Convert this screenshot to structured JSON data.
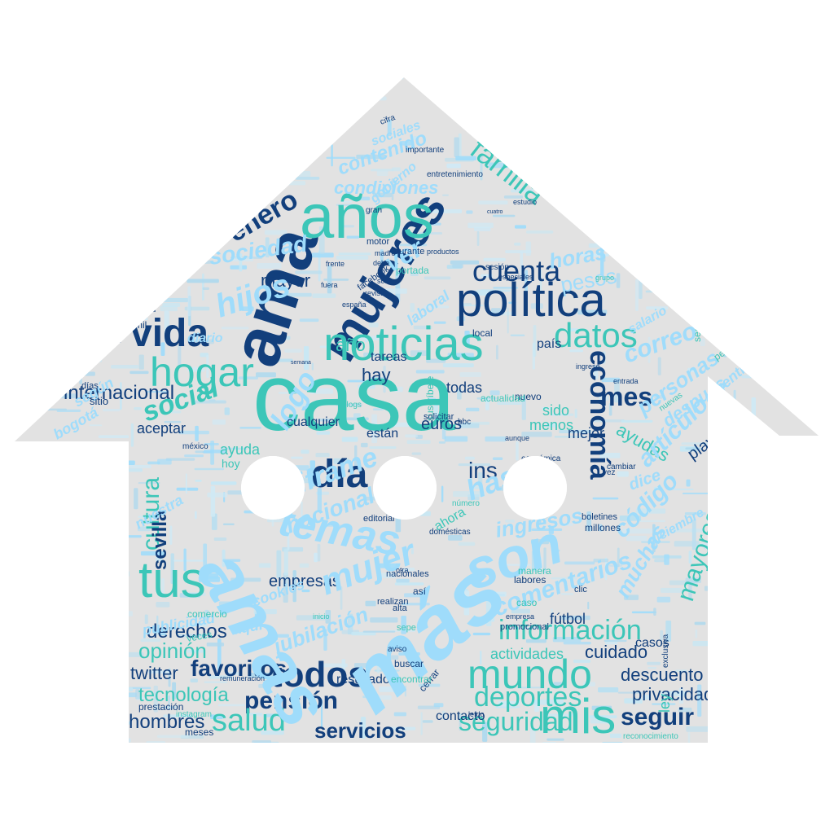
{
  "palette": {
    "background": "#ffffff",
    "house": "#e2e2e2",
    "navy": "#123f7c",
    "teal": "#3cc6b8",
    "sky": "#9fdcfb",
    "pale": "#c6e7f4"
  },
  "windows": [
    "window-left",
    "window-center",
    "window-right"
  ],
  "words": [
    {
      "text": "casa",
      "color": "teal"
    },
    {
      "text": "ama",
      "color": "navy"
    },
    {
      "text": "mujeres",
      "color": "navy"
    },
    {
      "text": "años",
      "color": "teal"
    },
    {
      "text": "política",
      "color": "navy"
    },
    {
      "text": "noticias",
      "color": "teal"
    },
    {
      "text": "hogar",
      "color": "teal"
    },
    {
      "text": "vida",
      "color": "navy"
    },
    {
      "text": "datos",
      "color": "teal"
    },
    {
      "text": "día",
      "color": "navy"
    },
    {
      "text": "economía",
      "color": "navy"
    },
    {
      "text": "mes",
      "color": "navy"
    },
    {
      "text": "cuenta",
      "color": "navy"
    },
    {
      "text": "enero",
      "color": "navy"
    },
    {
      "text": "mayor",
      "color": "navy"
    },
    {
      "text": "familia",
      "color": "teal"
    },
    {
      "text": "internacional",
      "color": "navy"
    },
    {
      "text": "social",
      "color": "teal"
    },
    {
      "text": "hijos",
      "color": "sky"
    },
    {
      "text": "tus",
      "color": "teal"
    },
    {
      "text": "cultura",
      "color": "teal"
    },
    {
      "text": "sevilla",
      "color": "navy"
    },
    {
      "text": "todos",
      "color": "navy"
    },
    {
      "text": "mundo",
      "color": "teal"
    },
    {
      "text": "mis",
      "color": "teal"
    },
    {
      "text": "información",
      "color": "teal"
    },
    {
      "text": "deportes",
      "color": "teal"
    },
    {
      "text": "pensión",
      "color": "navy"
    },
    {
      "text": "derechos",
      "color": "navy"
    },
    {
      "text": "favoritos",
      "color": "navy"
    },
    {
      "text": "twitter",
      "color": "navy"
    },
    {
      "text": "salud",
      "color": "teal"
    },
    {
      "text": "servicios",
      "color": "navy"
    },
    {
      "text": "hombres",
      "color": "navy"
    },
    {
      "text": "seguir",
      "color": "navy"
    },
    {
      "text": "privacidad",
      "color": "navy"
    },
    {
      "text": "descuento",
      "color": "navy"
    },
    {
      "text": "cuidado",
      "color": "navy"
    },
    {
      "text": "seguridad",
      "color": "teal"
    },
    {
      "text": "tecnología",
      "color": "teal"
    },
    {
      "text": "opinión",
      "color": "teal"
    },
    {
      "text": "mayores",
      "color": "teal"
    },
    {
      "text": "empresas",
      "color": "navy"
    },
    {
      "text": "ayuda",
      "color": "teal"
    },
    {
      "text": "hay",
      "color": "navy"
    },
    {
      "text": "todas",
      "color": "navy"
    },
    {
      "text": "euros",
      "color": "navy"
    },
    {
      "text": "ins",
      "color": "navy"
    },
    {
      "text": "año",
      "color": "teal"
    },
    {
      "text": "correo",
      "color": "sky"
    },
    {
      "text": "logo",
      "color": "sky"
    },
    {
      "text": "ayudas",
      "color": "teal"
    },
    {
      "text": "otras",
      "color": "navy"
    },
    {
      "text": "play",
      "color": "navy"
    },
    {
      "text": "aceptar",
      "color": "navy"
    },
    {
      "text": "contacto",
      "color": "navy"
    },
    {
      "text": "resultados",
      "color": "navy"
    },
    {
      "text": "actividades",
      "color": "teal"
    },
    {
      "text": "fútbol",
      "color": "navy"
    },
    {
      "text": "sido",
      "color": "teal"
    },
    {
      "text": "menos",
      "color": "teal"
    },
    {
      "text": "mejor",
      "color": "navy"
    },
    {
      "text": "están",
      "color": "navy"
    },
    {
      "text": "cualquier",
      "color": "navy"
    },
    {
      "text": "tareas",
      "color": "navy"
    },
    {
      "text": "país",
      "color": "navy"
    },
    {
      "text": "sociedad",
      "color": "sky"
    },
    {
      "text": "horas",
      "color": "sky"
    },
    {
      "text": "pesos",
      "color": "sky"
    },
    {
      "text": "ver",
      "color": "sky"
    },
    {
      "text": "amas",
      "color": "sky"
    },
    {
      "text": "más",
      "color": "sky"
    },
    {
      "text": "son",
      "color": "sky"
    },
    {
      "text": "temas",
      "color": "sky"
    },
    {
      "text": "mujer",
      "color": "sky"
    },
    {
      "text": "hasta",
      "color": "sky"
    },
    {
      "text": "iframe",
      "color": "sky"
    },
    {
      "text": "nacional",
      "color": "sky"
    },
    {
      "text": "ingresos",
      "color": "sky"
    },
    {
      "text": "comentarios",
      "color": "sky"
    },
    {
      "text": "jubilación",
      "color": "sky"
    },
    {
      "text": "código",
      "color": "sky"
    },
    {
      "text": "muchas",
      "color": "sky"
    },
    {
      "text": "personas",
      "color": "sky"
    },
    {
      "text": "después",
      "color": "sky"
    },
    {
      "text": "artículo",
      "color": "sky"
    },
    {
      "text": "contenido",
      "color": "sky"
    },
    {
      "text": "condiciones",
      "color": "sky"
    },
    {
      "text": "sociales",
      "color": "sky"
    },
    {
      "text": "pensiones",
      "color": "sky"
    },
    {
      "text": "salario",
      "color": "sky"
    },
    {
      "text": "según",
      "color": "sky"
    },
    {
      "text": "diario",
      "color": "sky"
    },
    {
      "text": "bogotá",
      "color": "sky"
    },
    {
      "text": "publicidad",
      "color": "sky"
    },
    {
      "text": "cookies",
      "color": "sky"
    },
    {
      "text": "nuestra",
      "color": "sky"
    },
    {
      "text": "gobierno",
      "color": "sky"
    },
    {
      "text": "argentina",
      "color": "sky"
    },
    {
      "text": "diciembre",
      "color": "sky"
    },
    {
      "text": "dice",
      "color": "sky"
    },
    {
      "text": "email",
      "color": "pale"
    },
    {
      "text": "aquí",
      "color": "sky"
    },
    {
      "text": "ahora",
      "color": "teal"
    },
    {
      "text": "ley",
      "color": "teal"
    },
    {
      "text": "casos",
      "color": "navy"
    },
    {
      "text": "nuevo",
      "color": "navy"
    },
    {
      "text": "importante",
      "color": "navy"
    },
    {
      "text": "entretenimiento",
      "color": "navy"
    },
    {
      "text": "estudio",
      "color": "navy"
    },
    {
      "text": "facebook",
      "color": "navy"
    },
    {
      "text": "portada",
      "color": "teal"
    },
    {
      "text": "sesión",
      "color": "navy"
    },
    {
      "text": "grupo",
      "color": "teal"
    },
    {
      "text": "sector",
      "color": "teal"
    },
    {
      "text": "persona",
      "color": "teal"
    },
    {
      "text": "digital",
      "color": "navy"
    },
    {
      "text": "sitio",
      "color": "navy"
    },
    {
      "text": "días",
      "color": "navy"
    },
    {
      "text": "feed",
      "color": "navy"
    },
    {
      "text": "mil",
      "color": "navy"
    },
    {
      "text": "local",
      "color": "navy"
    },
    {
      "text": "entrada",
      "color": "navy"
    },
    {
      "text": "ingreso",
      "color": "navy"
    },
    {
      "text": "actualidad",
      "color": "teal"
    },
    {
      "text": "suscríbete",
      "color": "teal"
    },
    {
      "text": "blogs",
      "color": "teal"
    },
    {
      "text": "solicitar",
      "color": "navy"
    },
    {
      "text": "aunque",
      "color": "navy"
    },
    {
      "text": "económica",
      "color": "navy"
    },
    {
      "text": "número",
      "color": "teal"
    },
    {
      "text": "editorial",
      "color": "navy"
    },
    {
      "text": "domésticas",
      "color": "navy"
    },
    {
      "text": "millones",
      "color": "navy"
    },
    {
      "text": "boletines",
      "color": "navy"
    },
    {
      "text": "labores",
      "color": "navy"
    },
    {
      "text": "manera",
      "color": "teal"
    },
    {
      "text": "clic",
      "color": "navy"
    },
    {
      "text": "caso",
      "color": "teal"
    },
    {
      "text": "empresa",
      "color": "navy"
    },
    {
      "text": "promocional",
      "color": "navy"
    },
    {
      "text": "realizan",
      "color": "navy"
    },
    {
      "text": "nacionales",
      "color": "navy"
    },
    {
      "text": "así",
      "color": "navy"
    },
    {
      "text": "inicio",
      "color": "teal"
    },
    {
      "text": "comercio",
      "color": "teal"
    },
    {
      "text": "remuneración",
      "color": "navy"
    },
    {
      "text": "prestación",
      "color": "navy"
    },
    {
      "text": "instagram",
      "color": "teal"
    },
    {
      "text": "meses",
      "color": "navy"
    },
    {
      "text": "cerrar",
      "color": "navy"
    },
    {
      "text": "leído",
      "color": "navy"
    },
    {
      "text": "reconocimiento",
      "color": "teal"
    },
    {
      "text": "exclusiva",
      "color": "navy"
    },
    {
      "text": "bbc",
      "color": "navy"
    },
    {
      "text": "hoy",
      "color": "teal"
    },
    {
      "text": "méxico",
      "color": "navy"
    },
    {
      "text": "aviso",
      "color": "navy"
    },
    {
      "text": "buscar",
      "color": "navy"
    },
    {
      "text": "encontrar",
      "color": "teal"
    },
    {
      "text": "cifra",
      "color": "navy"
    },
    {
      "text": "vez",
      "color": "navy"
    },
    {
      "text": "pagar",
      "color": "teal"
    },
    {
      "text": "motor",
      "color": "navy"
    },
    {
      "text": "durante",
      "color": "navy"
    },
    {
      "text": "productos",
      "color": "navy"
    },
    {
      "text": "gran",
      "color": "navy"
    },
    {
      "text": "madre",
      "color": "navy"
    },
    {
      "text": "frente",
      "color": "navy"
    },
    {
      "text": "fuera",
      "color": "navy"
    },
    {
      "text": "debe",
      "color": "navy"
    },
    {
      "text": "españa",
      "color": "navy"
    },
    {
      "text": "revista",
      "color": "navy"
    },
    {
      "text": "sólo",
      "color": "navy"
    },
    {
      "text": "especiales",
      "color": "navy"
    },
    {
      "text": "semana",
      "color": "navy"
    },
    {
      "text": "cuatro",
      "color": "navy"
    },
    {
      "text": "laboral",
      "color": "sky"
    },
    {
      "text": "sepe",
      "color": "teal"
    },
    {
      "text": "alternate",
      "color": "teal"
    },
    {
      "text": "alta",
      "color": "navy"
    },
    {
      "text": "otra",
      "color": "navy"
    },
    {
      "text": "prohibida",
      "color": "navy"
    },
    {
      "text": "veces",
      "color": "teal"
    },
    {
      "text": "nuevas",
      "color": "teal"
    },
    {
      "text": "cambiar",
      "color": "navy"
    },
    {
      "text": "inegi",
      "color": "navy"
    }
  ]
}
